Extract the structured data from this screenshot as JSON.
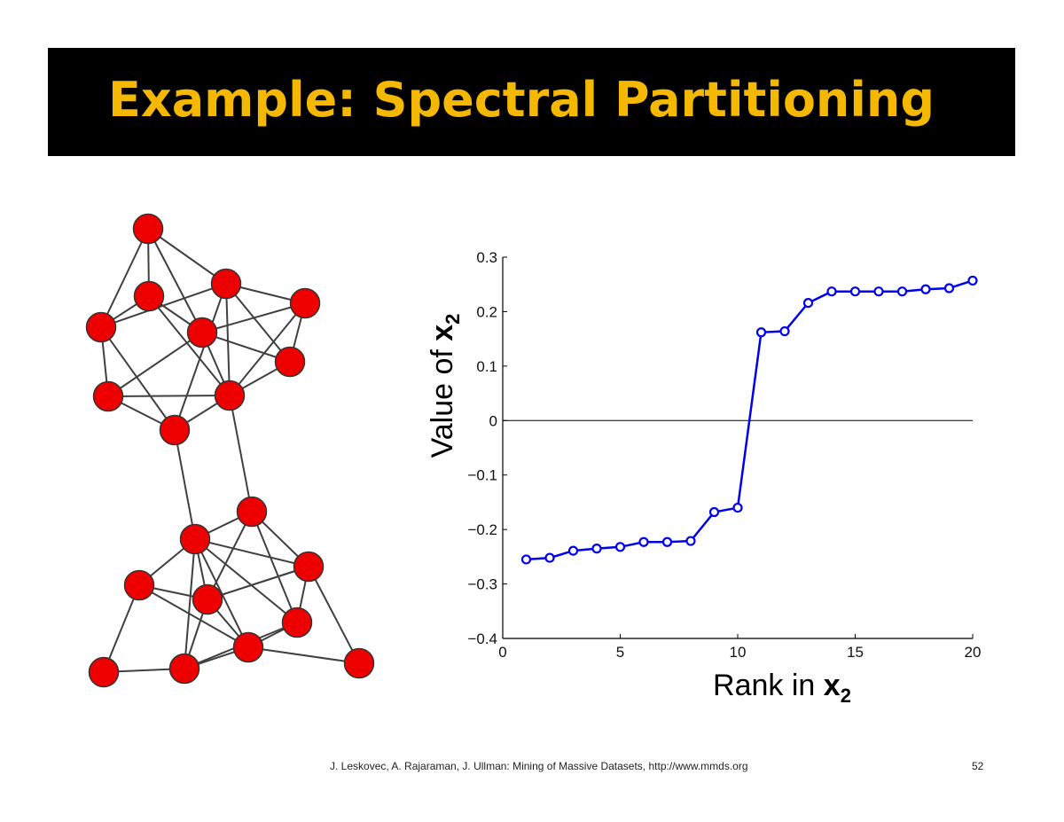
{
  "slide": {
    "title": "Example: Spectral Partitioning",
    "title_color": "#f5b800",
    "footer": "J. Leskovec, A. Rajaraman, J. Ullman: Mining of Massive Datasets, http://www.mmds.org",
    "page_number": "52"
  },
  "graph": {
    "node_color": "#ee0000",
    "edge_color": "#404040"
  },
  "chart_data": {
    "type": "line",
    "xlabel": "Rank in x2",
    "ylabel": "Value of x2",
    "xlim": [
      0,
      20
    ],
    "ylim": [
      -0.4,
      0.3
    ],
    "x_ticks": [
      "0",
      "5",
      "10",
      "15",
      "20"
    ],
    "y_ticks": [
      "0.3",
      "0.2",
      "0.1",
      "0",
      "−0.1",
      "−0.2",
      "−0.3",
      "−0.4"
    ],
    "grid": false,
    "zero_line": true,
    "series": [
      {
        "color": "#0000ee",
        "marker": "circle",
        "x": [
          1,
          2,
          3,
          4,
          5,
          6,
          7,
          8,
          9,
          10,
          11,
          12,
          13,
          14,
          15,
          16,
          17,
          18,
          19,
          20
        ],
        "y": [
          -0.255,
          -0.252,
          -0.239,
          -0.235,
          -0.232,
          -0.223,
          -0.223,
          -0.221,
          -0.168,
          -0.16,
          0.162,
          0.164,
          0.216,
          0.237,
          0.237,
          0.237,
          0.237,
          0.241,
          0.243,
          0.257
        ]
      }
    ]
  }
}
